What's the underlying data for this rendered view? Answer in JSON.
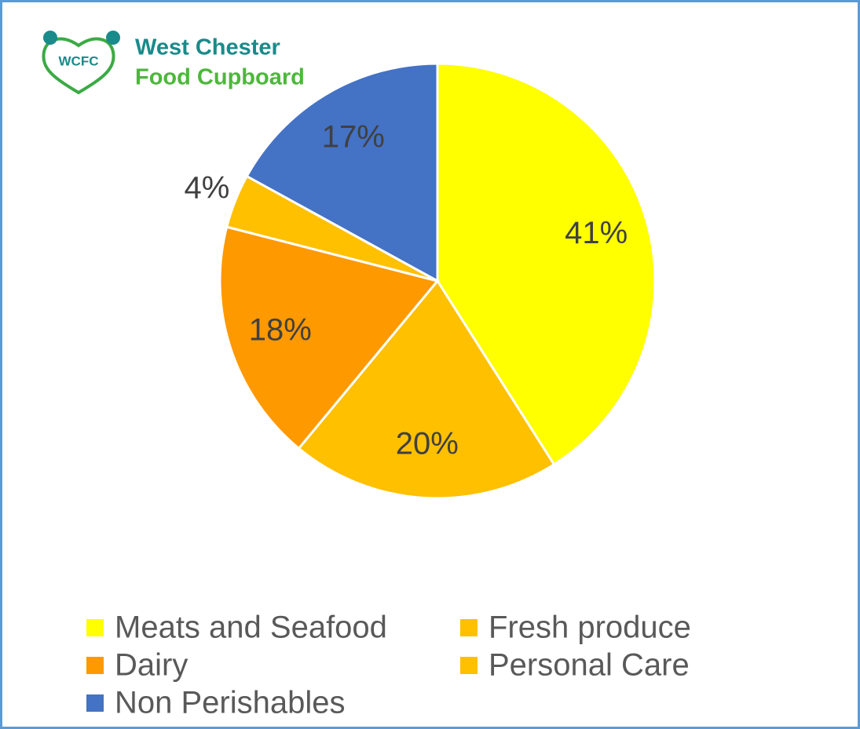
{
  "logo": {
    "acronym": "WCFC",
    "line1": "West Chester",
    "line2": "Food Cupboard"
  },
  "chart_data": {
    "type": "pie",
    "categories": [
      "Meats and Seafood",
      "Fresh produce",
      "Dairy",
      "Personal Care",
      "Non Perishables"
    ],
    "values": [
      41,
      20,
      18,
      4,
      17
    ],
    "value_labels": [
      "41%",
      "20%",
      "18%",
      "4%",
      "17%"
    ],
    "colors": [
      "#FFFF00",
      "#FFC000",
      "#FF9900",
      "#FFC000",
      "#4472C4"
    ],
    "legend": "bottom"
  }
}
